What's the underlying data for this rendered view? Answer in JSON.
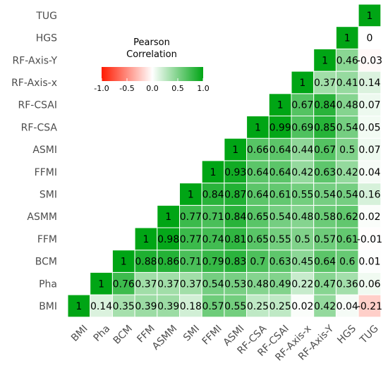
{
  "chart_data": {
    "type": "heatmap",
    "variables": [
      "BMI",
      "Pha",
      "BCM",
      "FFM",
      "ASMM",
      "SMI",
      "FFMI",
      "ASMI",
      "RF-CSA",
      "RF-CSAI",
      "RF-Axis-x",
      "RF-Axis-Y",
      "HGS",
      "TUG"
    ],
    "matrix_upper": [
      [
        "1",
        "0.14",
        "0.35",
        "0.39",
        "0.39",
        "0.18",
        "0.57",
        "0.55",
        "0.25",
        "0.25",
        "0.02",
        "0.42",
        "0.04",
        "-0.21"
      ],
      [
        "1",
        "0.76",
        "0.37",
        "0.37",
        "0.37",
        "0.54",
        "0.53",
        "0.48",
        "0.49",
        "0.22",
        "0.47",
        "0.36",
        "0.06"
      ],
      [
        "1",
        "0.88",
        "0.86",
        "0.71",
        "0.79",
        "0.83",
        "0.7",
        "0.63",
        "0.45",
        "0.64",
        "0.6",
        "0.01"
      ],
      [
        "1",
        "0.98",
        "0.77",
        "0.74",
        "0.81",
        "0.65",
        "0.55",
        "0.5",
        "0.57",
        "0.61",
        "-0.01"
      ],
      [
        "1",
        "0.77",
        "0.71",
        "0.84",
        "0.65",
        "0.54",
        "0.48",
        "0.58",
        "0.62",
        "0.02"
      ],
      [
        "1",
        "0.84",
        "0.87",
        "0.64",
        "0.61",
        "0.55",
        "0.54",
        "0.54",
        "0.16"
      ],
      [
        "1",
        "0.93",
        "0.64",
        "0.64",
        "0.42",
        "0.63",
        "0.42",
        "0.04"
      ],
      [
        "1",
        "0.66",
        "0.64",
        "0.44",
        "0.67",
        "0.5",
        "0.07"
      ],
      [
        "1",
        "0.99",
        "0.69",
        "0.85",
        "0.54",
        "0.05"
      ],
      [
        "1",
        "0.67",
        "0.84",
        "0.48",
        "0.07"
      ],
      [
        "1",
        "0.37",
        "0.41",
        "0.14"
      ],
      [
        "1",
        "0.46",
        "-0.03"
      ],
      [
        "1",
        "0"
      ],
      [
        "1"
      ]
    ],
    "legend": {
      "title_line1": "Pearson",
      "title_line2": "Correlation",
      "ticks": [
        "-1.0",
        "-0.5",
        "0.0",
        "0.5",
        "1.0"
      ],
      "range": [
        -1,
        1
      ]
    },
    "colors": {
      "low": "#ff1a00",
      "mid": "#ffffff",
      "high": "#00a515",
      "tile_border": "#ffffff"
    }
  }
}
